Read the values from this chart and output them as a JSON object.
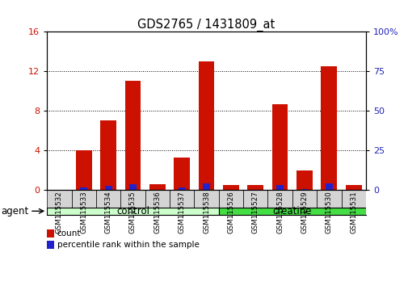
{
  "title": "GDS2765 / 1431809_at",
  "samples": [
    "GSM115532",
    "GSM115533",
    "GSM115534",
    "GSM115535",
    "GSM115536",
    "GSM115537",
    "GSM115538",
    "GSM115526",
    "GSM115527",
    "GSM115528",
    "GSM115529",
    "GSM115530",
    "GSM115531"
  ],
  "count_values": [
    0.05,
    4.0,
    7.0,
    11.0,
    0.6,
    3.3,
    13.0,
    0.55,
    0.55,
    8.7,
    2.0,
    12.5,
    0.55
  ],
  "percentile_values": [
    0.05,
    1.5,
    2.7,
    3.5,
    0.1,
    1.8,
    4.0,
    0.3,
    0.3,
    3.3,
    0.8,
    4.0,
    0.1
  ],
  "groups": [
    {
      "label": "control",
      "start": 0,
      "end": 6,
      "color": "#ccffcc"
    },
    {
      "label": "creatine",
      "start": 7,
      "end": 12,
      "color": "#44dd44"
    }
  ],
  "group_label": "agent",
  "ylim_left": [
    0,
    16
  ],
  "ylim_right": [
    0,
    100
  ],
  "yticks_left": [
    0,
    4,
    8,
    12,
    16
  ],
  "yticks_right": [
    0,
    25,
    50,
    75,
    100
  ],
  "bar_width": 0.65,
  "count_color": "#cc1100",
  "percentile_color": "#2222cc",
  "tick_label_color_left": "#cc1100",
  "tick_label_color_right": "#2222bb",
  "background_color": "#ffffff",
  "col_bg_color": "#d4d4d4",
  "n_samples": 13
}
